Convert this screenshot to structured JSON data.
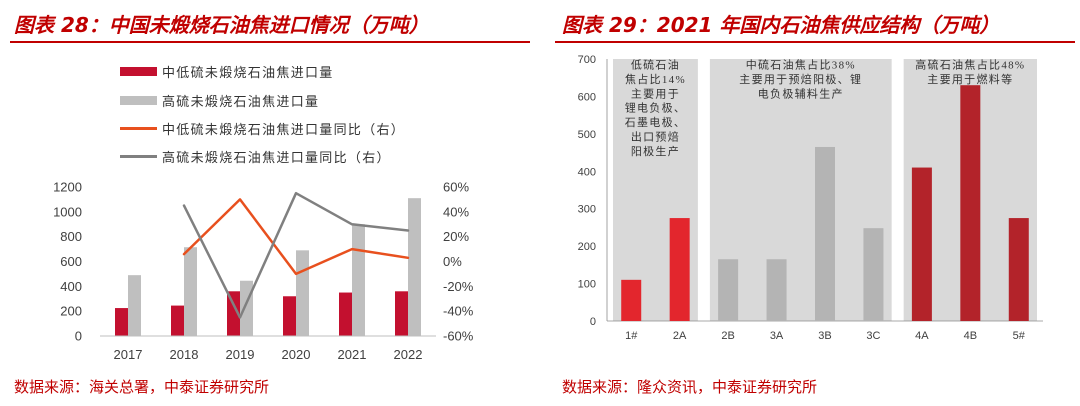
{
  "colors": {
    "title_red": "#c00000",
    "source_red": "#c00000"
  },
  "chart_data": [
    {
      "type": "bar",
      "title": "图表 28：中国未煅烧石油焦进口情况（万吨）",
      "source": "数据来源：海关总署，中泰证券研究所",
      "xlabel": "",
      "ylabel": "",
      "categories": [
        "2017",
        "2018",
        "2019",
        "2020",
        "2021",
        "2022"
      ],
      "series": [
        {
          "name": "中低硫未煅烧石油焦进口量",
          "kind": "bar",
          "axis": "left",
          "color": "#c3102f",
          "values": [
            225,
            245,
            360,
            320,
            350,
            360
          ]
        },
        {
          "name": "高硫未煅烧石油焦进口量",
          "kind": "bar",
          "axis": "left",
          "color": "#bfbfbf",
          "values": [
            490,
            715,
            445,
            690,
            900,
            1110
          ]
        },
        {
          "name": "中低硫未煅烧石油焦进口量同比（右）",
          "kind": "line",
          "axis": "right",
          "color": "#e8501e",
          "values": [
            null,
            6,
            50,
            -10,
            10,
            3
          ]
        },
        {
          "name": "高硫未煅烧石油焦进口量同比（右）",
          "kind": "line",
          "axis": "right",
          "color": "#808080",
          "values": [
            null,
            45,
            -45,
            55,
            30,
            25
          ]
        }
      ],
      "ylim": [
        0,
        1200
      ],
      "yticks": [
        "0",
        "200",
        "400",
        "600",
        "800",
        "1000",
        "1200"
      ],
      "y2lim": [
        -60,
        60
      ],
      "y2ticks": [
        "-60%",
        "-40%",
        "-20%",
        "0%",
        "20%",
        "40%",
        "60%"
      ],
      "legend": "top-left",
      "grid": false
    },
    {
      "type": "bar",
      "title": "图表 29：2021 年国内石油焦供应结构（万吨）",
      "source": "数据来源：隆众资讯，中泰证券研究所",
      "xlabel": "",
      "ylabel": "",
      "categories": [
        "1#",
        "2A",
        "2B",
        "3A",
        "3B",
        "3C",
        "4A",
        "4B",
        "5#"
      ],
      "values": [
        110,
        275,
        165,
        165,
        465,
        248,
        410,
        630,
        275
      ],
      "ylim": [
        0,
        700
      ],
      "yticks": [
        "0",
        "100",
        "200",
        "300",
        "400",
        "500",
        "600",
        "700"
      ],
      "grid": false,
      "band_color": "#d9d9d9",
      "groups": [
        {
          "span": [
            0,
            1
          ],
          "bar_color": "#e3262d",
          "note_lines": [
            "低硫石油",
            "焦占比14%",
            "主要用于",
            "锂电负极、",
            "石墨电极、",
            "出口预焙",
            "阳极生产"
          ]
        },
        {
          "span": [
            2,
            5
          ],
          "bar_color": "#b4b4b4",
          "note_lines": [
            "中硫石油焦占比38%",
            "主要用于预焙阳极、锂",
            "电负极辅料生产"
          ]
        },
        {
          "span": [
            6,
            8
          ],
          "bar_color": "#b3232a",
          "note_lines": [
            "高硫石油焦占比48%",
            "主要用于燃料等"
          ]
        }
      ]
    }
  ]
}
